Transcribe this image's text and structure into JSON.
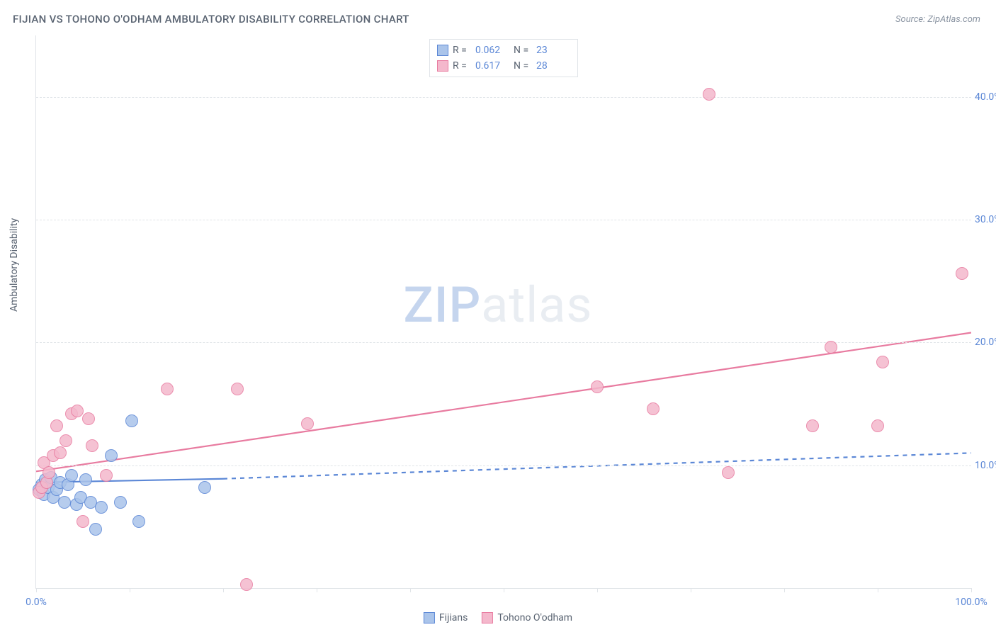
{
  "title": "FIJIAN VS TOHONO O'ODHAM AMBULATORY DISABILITY CORRELATION CHART",
  "source": "Source: ZipAtlas.com",
  "ylabel": "Ambulatory Disability",
  "watermark": {
    "zip": "ZIP",
    "atlas": "atlas"
  },
  "chart": {
    "type": "scatter",
    "background_color": "#ffffff",
    "grid_color": "#e0e4e8",
    "axis_color": "#e0e4e8",
    "tick_label_color": "#5b87d6",
    "text_color": "#5a6472",
    "tick_fontsize": 14,
    "title_fontsize": 15,
    "xlim": [
      0,
      100
    ],
    "ylim": [
      0,
      45
    ],
    "x_ticks": [
      0,
      10,
      20,
      30,
      40,
      50,
      60,
      70,
      80,
      90,
      100
    ],
    "x_tick_labels": {
      "0": "0.0%",
      "100": "100.0%"
    },
    "y_gridlines": [
      10,
      20,
      30,
      40
    ],
    "y_tick_labels": {
      "10": "10.0%",
      "20": "20.0%",
      "30": "30.0%",
      "40": "40.0%"
    },
    "marker_radius": 9,
    "marker_border_width": 1.5,
    "marker_fill_opacity": 0.35,
    "series": [
      {
        "name": "Fijians",
        "color_border": "#5b87d6",
        "color_fill": "#aac4ea",
        "r": 0.062,
        "n": 23,
        "trend": {
          "solid_from": [
            0,
            8.6
          ],
          "solid_to": [
            20,
            8.9
          ],
          "dash_from": [
            20,
            8.9
          ],
          "dash_to": [
            100,
            11.0
          ],
          "line_width": 2.2,
          "dash_pattern": "6,6"
        },
        "points": [
          [
            0.3,
            8.0
          ],
          [
            0.6,
            8.4
          ],
          [
            0.8,
            7.6
          ],
          [
            1.0,
            8.8
          ],
          [
            1.3,
            8.2
          ],
          [
            1.6,
            9.0
          ],
          [
            1.8,
            7.4
          ],
          [
            2.2,
            8.0
          ],
          [
            2.6,
            8.6
          ],
          [
            3.0,
            7.0
          ],
          [
            3.4,
            8.4
          ],
          [
            3.8,
            9.2
          ],
          [
            4.3,
            6.8
          ],
          [
            4.8,
            7.4
          ],
          [
            5.3,
            8.8
          ],
          [
            5.8,
            7.0
          ],
          [
            6.4,
            4.8
          ],
          [
            7.0,
            6.6
          ],
          [
            8.0,
            10.8
          ],
          [
            9.0,
            7.0
          ],
          [
            10.2,
            13.6
          ],
          [
            11.0,
            5.4
          ],
          [
            18.0,
            8.2
          ]
        ]
      },
      {
        "name": "Tohono O'odham",
        "color_border": "#e87ba0",
        "color_fill": "#f4b8cc",
        "r": 0.617,
        "n": 28,
        "trend": {
          "solid_from": [
            0,
            9.5
          ],
          "solid_to": [
            100,
            20.8
          ],
          "line_width": 2.2
        },
        "points": [
          [
            0.3,
            7.8
          ],
          [
            0.6,
            8.2
          ],
          [
            0.8,
            10.2
          ],
          [
            1.1,
            8.6
          ],
          [
            1.4,
            9.4
          ],
          [
            1.8,
            10.8
          ],
          [
            2.2,
            13.2
          ],
          [
            2.6,
            11.0
          ],
          [
            3.2,
            12.0
          ],
          [
            3.8,
            14.2
          ],
          [
            4.4,
            14.4
          ],
          [
            5.0,
            5.4
          ],
          [
            5.6,
            13.8
          ],
          [
            6.0,
            11.6
          ],
          [
            7.5,
            9.2
          ],
          [
            14.0,
            16.2
          ],
          [
            21.5,
            16.2
          ],
          [
            22.5,
            0.3
          ],
          [
            29.0,
            13.4
          ],
          [
            60.0,
            16.4
          ],
          [
            66.0,
            14.6
          ],
          [
            72.0,
            40.2
          ],
          [
            74.0,
            9.4
          ],
          [
            83.0,
            13.2
          ],
          [
            85.0,
            19.6
          ],
          [
            90.0,
            13.2
          ],
          [
            90.5,
            18.4
          ],
          [
            99.0,
            25.6
          ]
        ]
      }
    ]
  },
  "legend_top": {
    "r_label": "R =",
    "n_label": "N ="
  },
  "legend_bottom_labels": [
    "Fijians",
    "Tohono O'odham"
  ]
}
